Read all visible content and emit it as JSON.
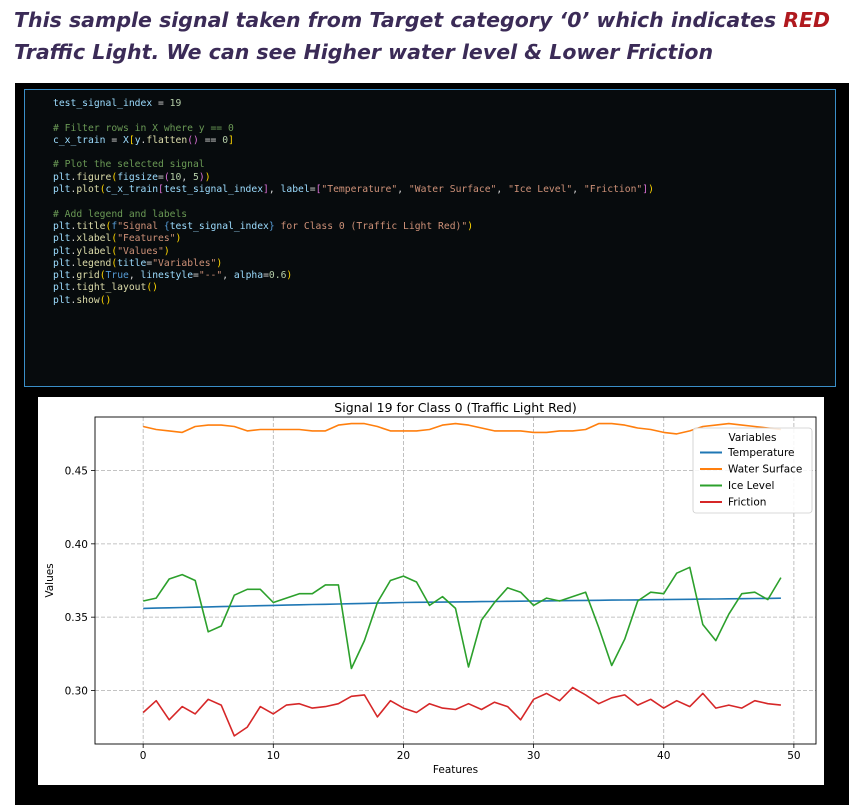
{
  "slide": {
    "title_part1": "This sample signal taken from Target category ‘0’ which indicates ",
    "title_red": "RED",
    "title_part2": " Traffic Light. We can see Higher water level & Lower Friction"
  },
  "code_lines": [
    [
      {
        "t": "test_signal_index",
        "c": "var"
      },
      {
        "t": " = ",
        "c": "op"
      },
      {
        "t": "19",
        "c": "num"
      }
    ],
    [],
    [
      {
        "t": "# Filter rows in X where y == 0",
        "c": "cmt"
      }
    ],
    [
      {
        "t": "c_x_train",
        "c": "var"
      },
      {
        "t": " = ",
        "c": "op"
      },
      {
        "t": "X",
        "c": "var"
      },
      {
        "t": "[",
        "c": "br"
      },
      {
        "t": "y",
        "c": "var"
      },
      {
        "t": ".",
        "c": "op"
      },
      {
        "t": "flatten",
        "c": "fn"
      },
      {
        "t": "()",
        "c": "br2"
      },
      {
        "t": " == ",
        "c": "op"
      },
      {
        "t": "0",
        "c": "num"
      },
      {
        "t": "]",
        "c": "br"
      }
    ],
    [],
    [
      {
        "t": "# Plot the selected signal",
        "c": "cmt"
      }
    ],
    [
      {
        "t": "plt",
        "c": "var"
      },
      {
        "t": ".",
        "c": "op"
      },
      {
        "t": "figure",
        "c": "fn"
      },
      {
        "t": "(",
        "c": "br"
      },
      {
        "t": "figsize",
        "c": "par"
      },
      {
        "t": "=",
        "c": "op"
      },
      {
        "t": "(",
        "c": "br2"
      },
      {
        "t": "10",
        "c": "num"
      },
      {
        "t": ", ",
        "c": "op"
      },
      {
        "t": "5",
        "c": "num"
      },
      {
        "t": ")",
        "c": "br2"
      },
      {
        "t": ")",
        "c": "br"
      }
    ],
    [
      {
        "t": "plt",
        "c": "var"
      },
      {
        "t": ".",
        "c": "op"
      },
      {
        "t": "plot",
        "c": "fn"
      },
      {
        "t": "(",
        "c": "br"
      },
      {
        "t": "c_x_train",
        "c": "var"
      },
      {
        "t": "[",
        "c": "br2"
      },
      {
        "t": "test_signal_index",
        "c": "var"
      },
      {
        "t": "]",
        "c": "br2"
      },
      {
        "t": ", ",
        "c": "op"
      },
      {
        "t": "label",
        "c": "par"
      },
      {
        "t": "=",
        "c": "op"
      },
      {
        "t": "[",
        "c": "br2"
      },
      {
        "t": "\"Temperature\"",
        "c": "str"
      },
      {
        "t": ", ",
        "c": "op"
      },
      {
        "t": "\"Water Surface\"",
        "c": "str"
      },
      {
        "t": ", ",
        "c": "op"
      },
      {
        "t": "\"Ice Level\"",
        "c": "str"
      },
      {
        "t": ", ",
        "c": "op"
      },
      {
        "t": "\"Friction\"",
        "c": "str"
      },
      {
        "t": "]",
        "c": "br2"
      },
      {
        "t": ")",
        "c": "br"
      }
    ],
    [],
    [
      {
        "t": "# Add legend and labels",
        "c": "cmt"
      }
    ],
    [
      {
        "t": "plt",
        "c": "var"
      },
      {
        "t": ".",
        "c": "op"
      },
      {
        "t": "title",
        "c": "fn"
      },
      {
        "t": "(",
        "c": "br"
      },
      {
        "t": "f",
        "c": "kw"
      },
      {
        "t": "\"Signal ",
        "c": "str"
      },
      {
        "t": "{",
        "c": "kw"
      },
      {
        "t": "test_signal_index",
        "c": "var"
      },
      {
        "t": "}",
        "c": "kw"
      },
      {
        "t": " for Class 0 (Traffic Light Red)\"",
        "c": "str"
      },
      {
        "t": ")",
        "c": "br"
      }
    ],
    [
      {
        "t": "plt",
        "c": "var"
      },
      {
        "t": ".",
        "c": "op"
      },
      {
        "t": "xlabel",
        "c": "fn"
      },
      {
        "t": "(",
        "c": "br"
      },
      {
        "t": "\"Features\"",
        "c": "str"
      },
      {
        "t": ")",
        "c": "br"
      }
    ],
    [
      {
        "t": "plt",
        "c": "var"
      },
      {
        "t": ".",
        "c": "op"
      },
      {
        "t": "ylabel",
        "c": "fn"
      },
      {
        "t": "(",
        "c": "br"
      },
      {
        "t": "\"Values\"",
        "c": "str"
      },
      {
        "t": ")",
        "c": "br"
      }
    ],
    [
      {
        "t": "plt",
        "c": "var"
      },
      {
        "t": ".",
        "c": "op"
      },
      {
        "t": "legend",
        "c": "fn"
      },
      {
        "t": "(",
        "c": "br"
      },
      {
        "t": "title",
        "c": "par"
      },
      {
        "t": "=",
        "c": "op"
      },
      {
        "t": "\"Variables\"",
        "c": "str"
      },
      {
        "t": ")",
        "c": "br"
      }
    ],
    [
      {
        "t": "plt",
        "c": "var"
      },
      {
        "t": ".",
        "c": "op"
      },
      {
        "t": "grid",
        "c": "fn"
      },
      {
        "t": "(",
        "c": "br"
      },
      {
        "t": "True",
        "c": "kw"
      },
      {
        "t": ", ",
        "c": "op"
      },
      {
        "t": "linestyle",
        "c": "par"
      },
      {
        "t": "=",
        "c": "op"
      },
      {
        "t": "\"--\"",
        "c": "str"
      },
      {
        "t": ", ",
        "c": "op"
      },
      {
        "t": "alpha",
        "c": "par"
      },
      {
        "t": "=",
        "c": "op"
      },
      {
        "t": "0.6",
        "c": "num"
      },
      {
        "t": ")",
        "c": "br"
      }
    ],
    [
      {
        "t": "plt",
        "c": "var"
      },
      {
        "t": ".",
        "c": "op"
      },
      {
        "t": "tight_layout",
        "c": "fn"
      },
      {
        "t": "()",
        "c": "br"
      }
    ],
    [
      {
        "t": "plt",
        "c": "var"
      },
      {
        "t": ".",
        "c": "op"
      },
      {
        "t": "show",
        "c": "fn"
      },
      {
        "t": "()",
        "c": "br"
      }
    ]
  ],
  "chart_data": {
    "type": "line",
    "title": "Signal 19 for Class 0 (Traffic Light Red)",
    "xlabel": "Features",
    "ylabel": "Values",
    "legend_title": "Variables",
    "legend_position": "top-right",
    "grid": true,
    "xlim": [
      -3.7,
      51.7
    ],
    "ylim": [
      0.2635,
      0.4865
    ],
    "xticks": [
      0,
      10,
      20,
      30,
      40,
      50
    ],
    "yticks": [
      0.3,
      0.35,
      0.4,
      0.45
    ],
    "ytick_labels": [
      "0.30",
      "0.35",
      "0.40",
      "0.45"
    ],
    "series": [
      {
        "name": "Temperature",
        "color": "#1f77b4",
        "values": [
          0.356,
          0.3562,
          0.3564,
          0.3566,
          0.3568,
          0.357,
          0.3572,
          0.3574,
          0.3576,
          0.3578,
          0.358,
          0.3582,
          0.3584,
          0.3586,
          0.3588,
          0.359,
          0.3592,
          0.3594,
          0.3596,
          0.3598,
          0.36,
          0.3601,
          0.3602,
          0.3603,
          0.3604,
          0.3605,
          0.3606,
          0.3607,
          0.3608,
          0.3609,
          0.361,
          0.3611,
          0.3612,
          0.3613,
          0.3614,
          0.3615,
          0.3616,
          0.3617,
          0.3618,
          0.3619,
          0.362,
          0.3621,
          0.3622,
          0.3623,
          0.3624,
          0.3625,
          0.3626,
          0.3627,
          0.3628,
          0.3629
        ]
      },
      {
        "name": "Water Surface",
        "color": "#ff7f0e",
        "values": [
          0.48,
          0.478,
          0.477,
          0.476,
          0.48,
          0.481,
          0.481,
          0.48,
          0.477,
          0.478,
          0.478,
          0.478,
          0.478,
          0.477,
          0.477,
          0.481,
          0.482,
          0.482,
          0.48,
          0.477,
          0.477,
          0.477,
          0.478,
          0.481,
          0.482,
          0.481,
          0.479,
          0.477,
          0.477,
          0.477,
          0.476,
          0.476,
          0.477,
          0.477,
          0.478,
          0.482,
          0.482,
          0.481,
          0.479,
          0.478,
          0.476,
          0.475,
          0.477,
          0.48,
          0.481,
          0.482,
          0.481,
          0.48,
          0.479,
          0.478
        ]
      },
      {
        "name": "Ice Level",
        "color": "#2ca02c",
        "values": [
          0.361,
          0.363,
          0.376,
          0.379,
          0.375,
          0.34,
          0.344,
          0.365,
          0.369,
          0.369,
          0.36,
          0.363,
          0.366,
          0.366,
          0.372,
          0.372,
          0.315,
          0.334,
          0.36,
          0.375,
          0.378,
          0.374,
          0.358,
          0.364,
          0.356,
          0.316,
          0.348,
          0.36,
          0.37,
          0.367,
          0.358,
          0.363,
          0.361,
          0.364,
          0.367,
          0.343,
          0.317,
          0.335,
          0.361,
          0.367,
          0.366,
          0.38,
          0.384,
          0.345,
          0.334,
          0.352,
          0.366,
          0.367,
          0.362,
          0.377
        ]
      },
      {
        "name": "Friction",
        "color": "#d62728",
        "values": [
          0.285,
          0.293,
          0.28,
          0.289,
          0.284,
          0.294,
          0.29,
          0.269,
          0.275,
          0.289,
          0.284,
          0.29,
          0.291,
          0.288,
          0.289,
          0.291,
          0.296,
          0.297,
          0.282,
          0.293,
          0.288,
          0.285,
          0.291,
          0.288,
          0.287,
          0.291,
          0.287,
          0.292,
          0.289,
          0.28,
          0.294,
          0.298,
          0.293,
          0.302,
          0.297,
          0.291,
          0.295,
          0.297,
          0.29,
          0.294,
          0.288,
          0.293,
          0.289,
          0.298,
          0.288,
          0.29,
          0.288,
          0.293,
          0.291,
          0.29
        ]
      }
    ]
  }
}
